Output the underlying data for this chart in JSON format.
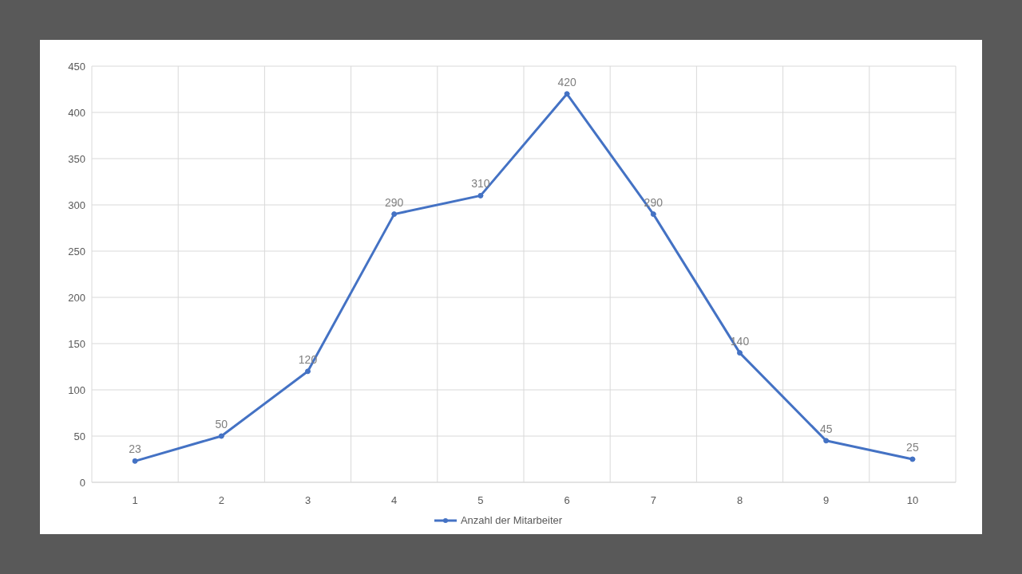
{
  "chart_data": {
    "type": "line",
    "categories": [
      "1",
      "2",
      "3",
      "4",
      "5",
      "6",
      "7",
      "8",
      "9",
      "10"
    ],
    "series": [
      {
        "name": "Anzahl der Mitarbeiter",
        "color": "#4472c4",
        "values": [
          23,
          50,
          120,
          290,
          310,
          420,
          290,
          140,
          45,
          25
        ]
      }
    ],
    "ylim": [
      0,
      450
    ],
    "yticks": [
      0,
      50,
      100,
      150,
      200,
      250,
      300,
      350,
      400,
      450
    ],
    "grid": true,
    "legend": "bottom",
    "marker": "circle",
    "line_style": "solid",
    "data_labels": true
  }
}
